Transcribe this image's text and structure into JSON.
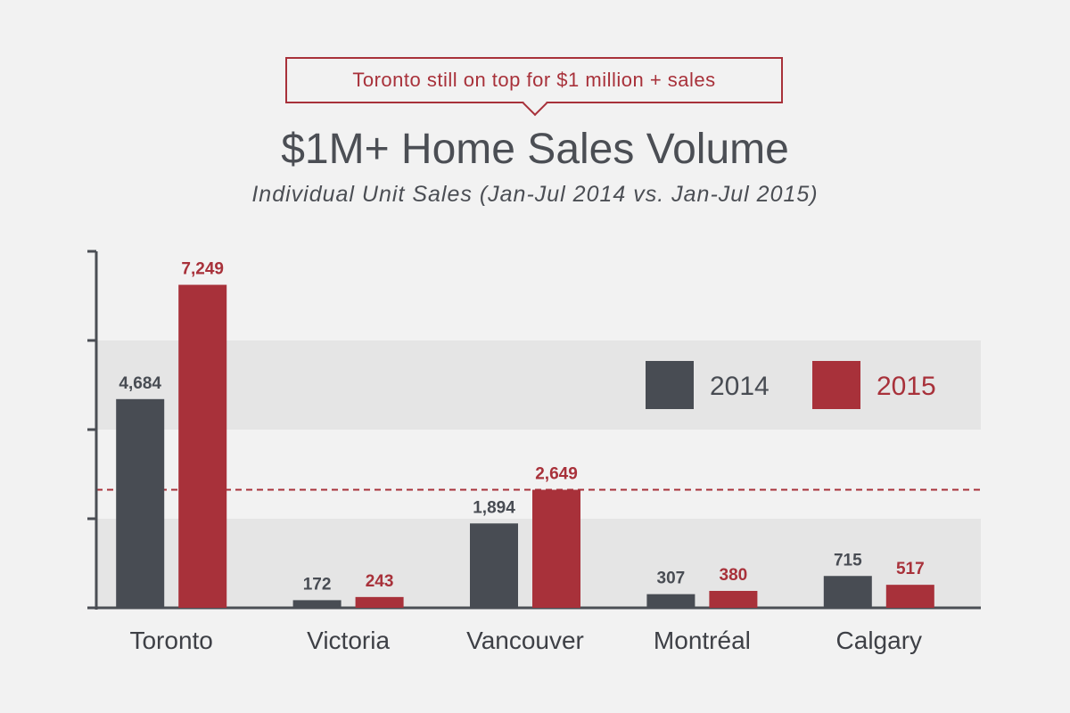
{
  "callout": {
    "text": "Toronto still on top for $1 million + sales"
  },
  "colors": {
    "series_2014": "#484c53",
    "series_2015": "#a8313a",
    "text": "#4b4e54",
    "band": "#e5e5e5"
  },
  "chart_data": {
    "type": "bar",
    "title": "$1M+ Home Sales Volume",
    "subtitle": "Individual Unit Sales (Jan-Jul 2014 vs. Jan-Jul 2015)",
    "categories": [
      "Toronto",
      "Victoria",
      "Vancouver",
      "Montréal",
      "Calgary"
    ],
    "series": [
      {
        "name": "2014",
        "values": [
          4684,
          172,
          1894,
          307,
          715
        ],
        "labels": [
          "4,684",
          "172",
          "1,894",
          "307",
          "715"
        ]
      },
      {
        "name": "2015",
        "values": [
          7249,
          243,
          2649,
          380,
          517
        ],
        "labels": [
          "7,249",
          "243",
          "2,649",
          "380",
          "517"
        ]
      }
    ],
    "ylim": [
      0,
      8000
    ],
    "reference_line": 2649,
    "legend_position": "top-right",
    "grid": false
  }
}
